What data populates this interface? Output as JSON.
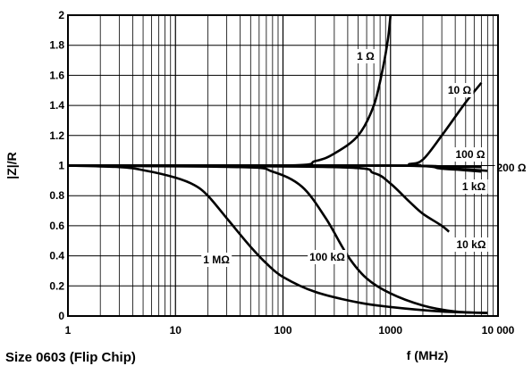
{
  "chart_data": {
    "type": "line",
    "title": "",
    "xlabel": "f (MHz)",
    "ylabel": "|Z|/R",
    "caption": "Size 0603 (Flip Chip)",
    "xscale": "log",
    "xlim": [
      1,
      10000
    ],
    "ylim": [
      0,
      2
    ],
    "grid": true,
    "x_ticks": [
      "1",
      "10",
      "100",
      "1000",
      "10 000"
    ],
    "y_ticks": [
      "0",
      "0.2",
      "0.4",
      "0.6",
      "0.8",
      "1",
      "1.2",
      "1.4",
      "1.6",
      "1.8",
      "2"
    ],
    "series": [
      {
        "name": "1 Ω",
        "x": [
          1,
          100,
          200,
          300,
          500,
          700,
          850,
          950,
          1000
        ],
        "y": [
          1,
          1.0,
          1.03,
          1.08,
          1.2,
          1.4,
          1.65,
          1.85,
          2.0
        ]
      },
      {
        "name": "10 Ω",
        "x": [
          1,
          1000,
          1500,
          2000,
          3000,
          5000,
          7000
        ],
        "y": [
          1,
          1.0,
          1.01,
          1.04,
          1.2,
          1.42,
          1.55
        ]
      },
      {
        "name": "100 Ω",
        "x": [
          1,
          1000,
          3000,
          7000
        ],
        "y": [
          1,
          1.0,
          0.995,
          0.99
        ]
      },
      {
        "name": "200 Ω",
        "x": [
          1,
          1000,
          3000,
          8000
        ],
        "y": [
          1,
          1.0,
          0.985,
          0.965
        ]
      },
      {
        "name": "1 kΩ",
        "x": [
          1,
          1000,
          3000,
          7000
        ],
        "y": [
          1,
          1.0,
          0.98,
          0.96
        ]
      },
      {
        "name": "10 kΩ",
        "x": [
          1,
          300,
          700,
          1000,
          1500,
          2000,
          3000,
          3500
        ],
        "y": [
          1,
          0.99,
          0.95,
          0.88,
          0.76,
          0.68,
          0.6,
          0.56
        ]
      },
      {
        "name": "100 kΩ",
        "x": [
          1,
          40,
          80,
          150,
          250,
          400,
          600,
          1000,
          2000,
          4000,
          8000
        ],
        "y": [
          1,
          0.99,
          0.96,
          0.86,
          0.65,
          0.4,
          0.25,
          0.15,
          0.07,
          0.03,
          0.02
        ]
      },
      {
        "name": "1 MΩ",
        "x": [
          1,
          3,
          5,
          10,
          15,
          20,
          30,
          50,
          70,
          100,
          200,
          500,
          1000,
          3000,
          8000
        ],
        "y": [
          1,
          0.99,
          0.97,
          0.92,
          0.87,
          0.8,
          0.65,
          0.46,
          0.35,
          0.26,
          0.16,
          0.09,
          0.06,
          0.03,
          0.02
        ]
      }
    ],
    "curve_labels": [
      "1 Ω",
      "10 Ω",
      "100 Ω",
      "200 Ω",
      "1 kΩ",
      "10 kΩ",
      "100 kΩ",
      "1 MΩ"
    ]
  }
}
